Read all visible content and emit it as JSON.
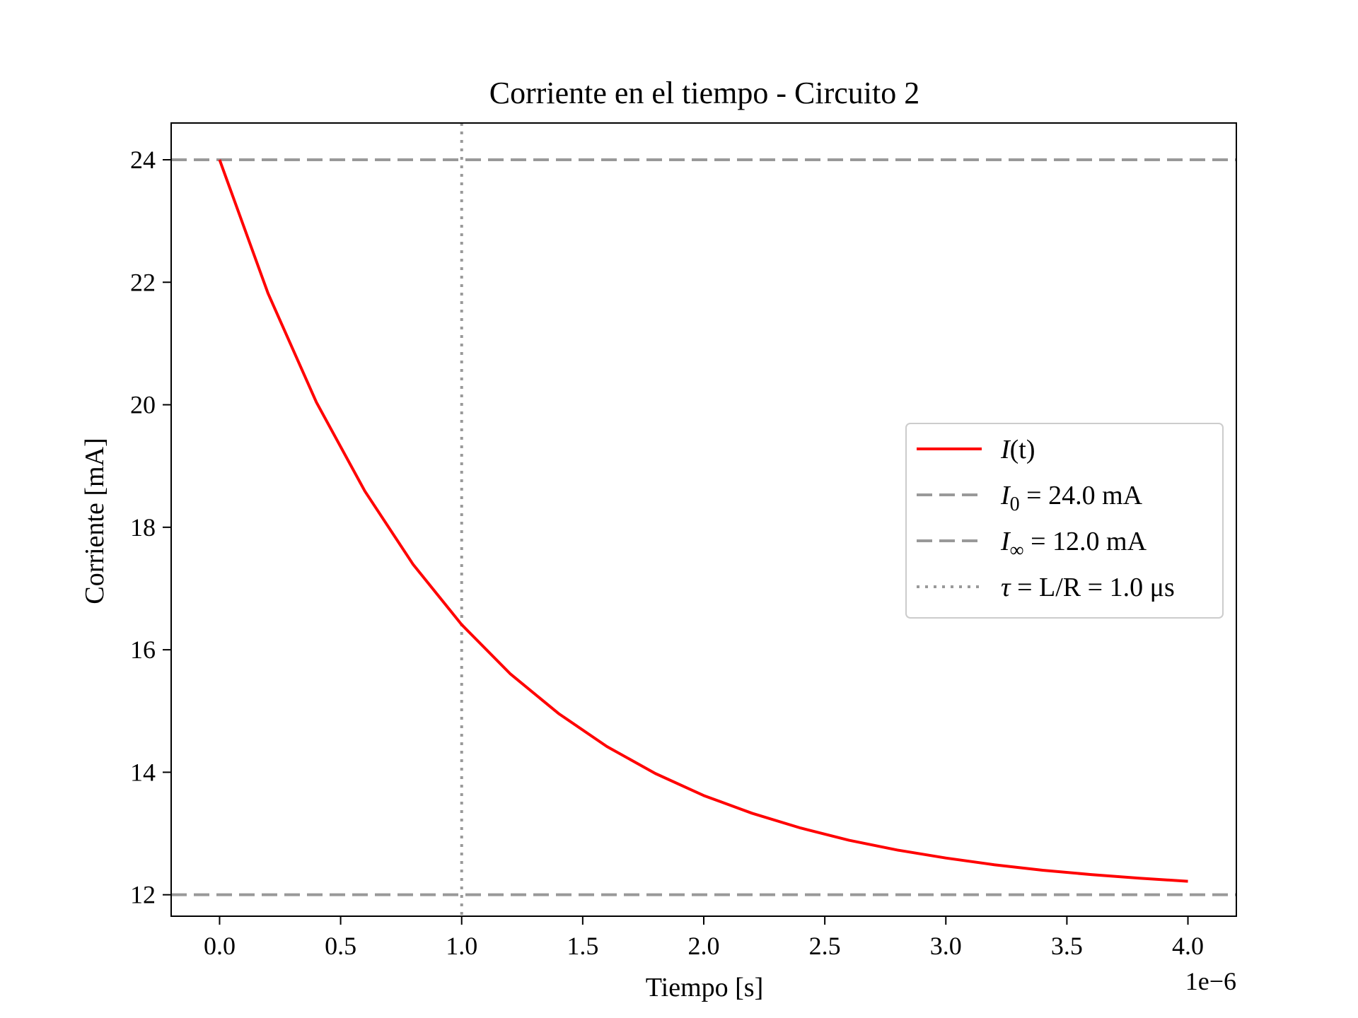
{
  "chart_data": {
    "type": "line",
    "title": "Corriente en el tiempo - Circuito 2",
    "xlabel": "Tiempo [s]",
    "ylabel": "Corriente [mA]",
    "x_offset_label": "1e−6",
    "xlim": [
      -2e-07,
      4.2e-06
    ],
    "ylim": [
      11.65,
      24.6
    ],
    "x_ticks": [
      {
        "value": 0.0,
        "label": "0.0"
      },
      {
        "value": 5e-07,
        "label": "0.5"
      },
      {
        "value": 1e-06,
        "label": "1.0"
      },
      {
        "value": 1.5e-06,
        "label": "1.5"
      },
      {
        "value": 2e-06,
        "label": "2.0"
      },
      {
        "value": 2.5e-06,
        "label": "2.5"
      },
      {
        "value": 3e-06,
        "label": "3.0"
      },
      {
        "value": 3.5e-06,
        "label": "3.5"
      },
      {
        "value": 4e-06,
        "label": "4.0"
      }
    ],
    "y_ticks": [
      {
        "value": 12,
        "label": "12"
      },
      {
        "value": 14,
        "label": "14"
      },
      {
        "value": 16,
        "label": "16"
      },
      {
        "value": 18,
        "label": "18"
      },
      {
        "value": 20,
        "label": "20"
      },
      {
        "value": 22,
        "label": "22"
      },
      {
        "value": 24,
        "label": "24"
      }
    ],
    "grid": false,
    "legend_position": "center-right",
    "series": [
      {
        "name": "I(t)",
        "color": "#ff0000",
        "style": "solid",
        "x": [
          0,
          2e-07,
          4e-07,
          6e-07,
          8e-07,
          1e-06,
          1.2e-06,
          1.4e-06,
          1.6e-06,
          1.8e-06,
          2e-06,
          2.2e-06,
          2.4e-06,
          2.6e-06,
          2.8e-06,
          3e-06,
          3.2e-06,
          3.4e-06,
          3.6e-06,
          3.8e-06,
          4e-06
        ],
        "y": [
          24.0,
          21.82,
          20.04,
          18.59,
          17.39,
          16.41,
          15.61,
          14.96,
          14.42,
          13.98,
          13.62,
          13.33,
          13.09,
          12.89,
          12.73,
          12.6,
          12.49,
          12.4,
          12.33,
          12.27,
          12.22
        ]
      }
    ],
    "reference_lines": [
      {
        "orientation": "horizontal",
        "value": 24.0,
        "style": "dashed",
        "color": "#999999"
      },
      {
        "orientation": "horizontal",
        "value": 12.0,
        "style": "dashed",
        "color": "#999999"
      },
      {
        "orientation": "vertical",
        "value": 1e-06,
        "style": "dotted",
        "color": "#999999"
      }
    ],
    "legend": [
      {
        "main": "I",
        "sub": "",
        "rest": "(t)",
        "style": "solid",
        "color": "#ff0000"
      },
      {
        "main": "I",
        "sub": "0",
        "rest": " = 24.0 mA",
        "style": "dashed",
        "color": "#999999"
      },
      {
        "main": "I",
        "sub": "∞",
        "rest": " = 12.0 mA",
        "style": "dashed",
        "color": "#999999"
      },
      {
        "main": "τ",
        "sub": "",
        "rest": " = L/R = 1.0 μs",
        "style": "dotted",
        "color": "#999999"
      }
    ]
  }
}
